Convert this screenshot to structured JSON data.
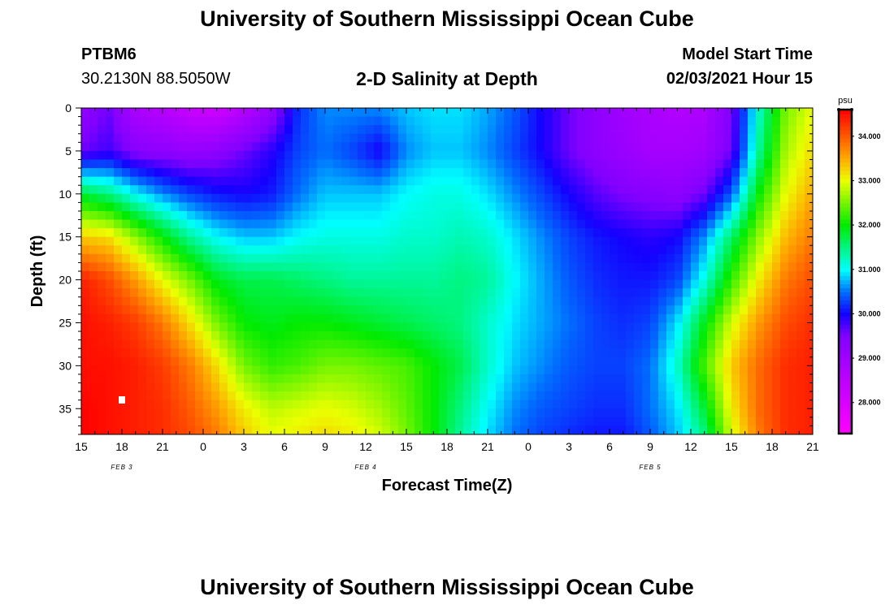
{
  "header": {
    "title": "University of Southern Mississippi Ocean Cube",
    "station": "PTBM6",
    "coordinates": "30.2130N 88.5050W",
    "model_start_label": "Model Start Time",
    "model_start_time": "02/03/2021 Hour 15"
  },
  "footer": {
    "title": "University of Southern Mississippi Ocean Cube"
  },
  "chart_data": {
    "type": "heatmap",
    "title": "2-D Salinity at Depth",
    "xlabel": "Forecast Time(Z)",
    "ylabel": "Depth (ft)",
    "x_tick_labels": [
      "15",
      "18",
      "21",
      "0",
      "3",
      "6",
      "9",
      "12",
      "15",
      "18",
      "21",
      "0",
      "3",
      "6",
      "9",
      "12",
      "15",
      "18",
      "21"
    ],
    "x_hours_from_start": [
      0,
      3,
      6,
      9,
      12,
      15,
      18,
      21,
      24,
      27,
      30,
      33,
      36,
      39,
      42,
      45,
      48,
      51,
      54
    ],
    "date_labels": [
      {
        "label": "FEB 3",
        "hour": 3
      },
      {
        "label": "FEB 4",
        "hour": 21
      },
      {
        "label": "FEB 5",
        "hour": 42
      }
    ],
    "y_ticks": [
      0,
      5,
      10,
      15,
      20,
      25,
      30,
      35
    ],
    "ylim": [
      38,
      0
    ],
    "colorbar": {
      "unit": "psu",
      "range": [
        27.3,
        34.6
      ],
      "tick_values": [
        28,
        29,
        30,
        31,
        32,
        33,
        34
      ],
      "tick_labels": [
        "28.000",
        "29.000",
        "30.000",
        "31.000",
        "32.000",
        "33.000",
        "34.000"
      ]
    },
    "depth_levels": [
      0,
      5,
      10,
      15,
      20,
      25,
      30,
      35,
      38
    ],
    "time_hours": [
      0,
      2,
      4,
      6,
      8,
      10,
      12,
      14,
      16,
      18,
      20,
      22,
      24,
      26,
      28,
      30,
      32,
      34,
      36,
      38,
      40,
      42,
      44,
      46,
      48,
      50,
      52,
      54
    ],
    "salinity": [
      [
        29.2,
        29.6,
        28.8,
        28.6,
        28.3,
        28.2,
        28.6,
        29.2,
        30.2,
        30.6,
        30.6,
        30.6,
        30.8,
        30.9,
        30.9,
        30.7,
        30.4,
        30.0,
        29.6,
        29.3,
        29.0,
        28.8,
        28.7,
        28.8,
        29.5,
        31.2,
        32.5,
        33.0
      ],
      [
        29.6,
        29.8,
        29.4,
        29.3,
        29.2,
        29.3,
        29.6,
        29.9,
        30.3,
        30.5,
        30.3,
        30.0,
        30.6,
        30.8,
        30.8,
        30.6,
        30.3,
        30.0,
        29.6,
        29.3,
        29.1,
        28.9,
        28.9,
        29.0,
        29.6,
        31.4,
        32.7,
        33.2
      ],
      [
        31.8,
        31.5,
        31.0,
        30.6,
        30.3,
        30.1,
        30.0,
        30.1,
        30.5,
        30.8,
        30.8,
        30.8,
        31.0,
        31.1,
        31.1,
        30.9,
        30.6,
        30.3,
        30.0,
        29.7,
        29.5,
        29.4,
        29.3,
        29.6,
        30.4,
        32.0,
        33.0,
        33.5
      ],
      [
        33.3,
        33.2,
        32.6,
        32.0,
        31.4,
        31.0,
        30.8,
        30.8,
        31.0,
        31.1,
        31.1,
        31.1,
        31.2,
        31.2,
        31.3,
        31.2,
        30.9,
        30.6,
        30.3,
        30.1,
        30.0,
        29.9,
        30.0,
        30.6,
        31.6,
        32.6,
        33.4,
        33.8
      ],
      [
        34.4,
        34.1,
        33.6,
        33.0,
        32.5,
        31.9,
        31.7,
        31.7,
        31.6,
        31.5,
        31.4,
        31.4,
        31.4,
        31.4,
        31.5,
        31.4,
        31.0,
        30.7,
        30.4,
        30.2,
        30.1,
        30.1,
        30.3,
        31.1,
        32.2,
        33.1,
        33.8,
        34.1
      ],
      [
        34.5,
        34.4,
        34.2,
        33.8,
        33.2,
        32.5,
        32.0,
        31.9,
        32.0,
        32.0,
        31.9,
        31.8,
        31.7,
        31.6,
        31.5,
        31.2,
        30.9,
        30.7,
        30.5,
        30.3,
        30.2,
        30.3,
        30.9,
        31.9,
        32.9,
        33.6,
        34.1,
        34.3
      ],
      [
        34.5,
        34.5,
        34.4,
        34.2,
        33.8,
        33.2,
        32.5,
        32.2,
        32.3,
        32.5,
        32.5,
        32.4,
        32.3,
        32.0,
        31.7,
        31.2,
        30.8,
        30.6,
        30.4,
        30.3,
        30.3,
        30.5,
        31.2,
        32.3,
        33.3,
        33.9,
        34.3,
        34.4
      ],
      [
        34.6,
        34.5,
        34.4,
        34.3,
        34.0,
        33.6,
        33.1,
        32.8,
        32.9,
        33.0,
        32.9,
        32.7,
        32.4,
        32.0,
        31.5,
        31.0,
        30.6,
        30.4,
        30.3,
        30.2,
        30.2,
        30.5,
        30.9,
        31.8,
        33.1,
        33.9,
        34.3,
        34.4
      ],
      [
        34.6,
        34.5,
        34.4,
        34.3,
        34.1,
        33.8,
        33.3,
        33.0,
        33.1,
        33.2,
        33.1,
        32.9,
        32.5,
        32.0,
        31.4,
        30.9,
        30.5,
        30.3,
        30.2,
        30.1,
        30.1,
        30.4,
        30.8,
        31.5,
        32.9,
        33.8,
        34.3,
        34.4
      ]
    ]
  }
}
